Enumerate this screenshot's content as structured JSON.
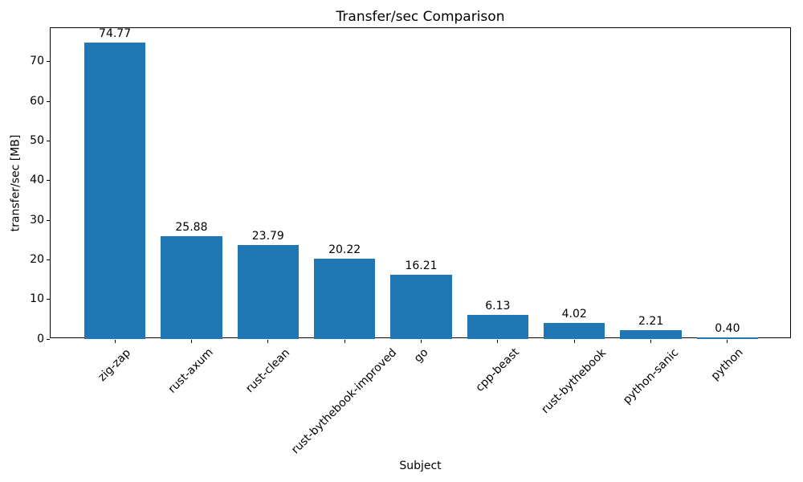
{
  "chart_data": {
    "type": "bar",
    "title": "Transfer/sec Comparison",
    "xlabel": "Subject",
    "ylabel": "transfer/sec [MB]",
    "categories": [
      "zig-zap",
      "rust-axum",
      "rust-clean",
      "rust-bythebook-improved",
      "go",
      "cpp-beast",
      "rust-bythebook",
      "python-sanic",
      "python"
    ],
    "values": [
      74.77,
      25.88,
      23.79,
      20.22,
      16.21,
      6.13,
      4.02,
      2.21,
      0.4
    ],
    "value_labels": [
      "74.77",
      "25.88",
      "23.79",
      "20.22",
      "16.21",
      "6.13",
      "4.02",
      "2.21",
      "0.40"
    ],
    "yticks": [
      0,
      10,
      20,
      30,
      40,
      50,
      60,
      70
    ],
    "ylim": [
      0,
      78.5
    ],
    "bar_color": "#1f77b4",
    "axis_color": "#000000",
    "background_color": "#ffffff",
    "grid": false,
    "legend_position": "none",
    "bar_width_fraction": 0.8,
    "x_tick_rotation_deg": 45
  }
}
